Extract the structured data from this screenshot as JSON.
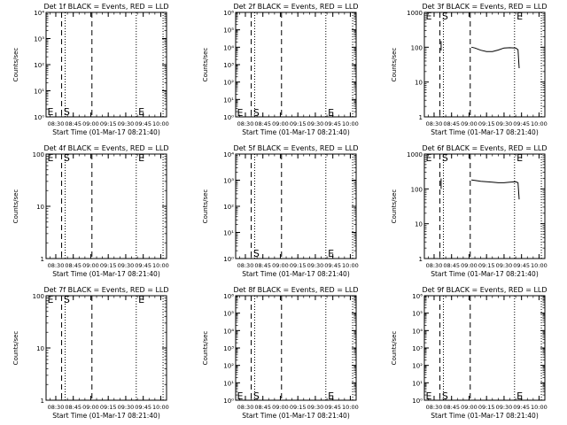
{
  "chart_data": [
    {
      "type": "line",
      "title": "Det 1f BLACK = Events, RED = LLD",
      "xlabel": "Start Time (01-Mar-17 08:21:40)",
      "ylabel": "Counts/sec",
      "yscale": "log",
      "ylim": [
        1.0,
        10000
      ],
      "yticks": [
        "10⁰",
        "10¹",
        "10²",
        "10³",
        "10⁴"
      ],
      "xticks": [
        "08:30",
        "08:45",
        "09:00",
        "09:15",
        "09:30",
        "09:45",
        "10:00"
      ],
      "xlim": [
        "08:21:40",
        "10:05"
      ],
      "dashed_lines": [
        "08:35",
        "09:01"
      ],
      "dotted_lines": [
        "08:38",
        "09:39",
        "10:02"
      ],
      "markers": [
        {
          "text": "E",
          "x": "08:22",
          "y": 1.6
        },
        {
          "text": "S",
          "x": "08:36",
          "y": 1.6
        },
        {
          "text": "E",
          "x": "09:40",
          "y": 1.6
        }
      ],
      "series": []
    },
    {
      "type": "line",
      "title": "Det 2f BLACK = Events, RED = LLD",
      "xlabel": "Start Time (01-Mar-17 08:21:40)",
      "ylabel": "Counts/sec",
      "yscale": "log",
      "ylim": [
        1.0,
        1000000
      ],
      "yticks": [
        "10⁰",
        "10¹",
        "10²",
        "10³",
        "10⁴",
        "10⁵",
        "10⁶"
      ],
      "xticks": [
        "08:30",
        "08:45",
        "09:00",
        "09:15",
        "09:30",
        "09:45",
        "10:00"
      ],
      "xlim": [
        "08:21:40",
        "10:05"
      ],
      "dashed_lines": [
        "08:35",
        "09:01"
      ],
      "dotted_lines": [
        "08:38",
        "09:39",
        "10:02"
      ],
      "markers": [
        {
          "text": "E",
          "x": "08:22",
          "y": 1.8
        },
        {
          "text": "S",
          "x": "08:36",
          "y": 1.8
        },
        {
          "text": "E",
          "x": "09:40",
          "y": 1.8
        }
      ],
      "series": []
    },
    {
      "type": "line",
      "title": "Det 3f BLACK = Events, RED = LLD",
      "xlabel": "Start Time (01-Mar-17 08:21:40)",
      "ylabel": "Counts/sec",
      "yscale": "log",
      "ylim": [
        1,
        1000
      ],
      "yticks": [
        "1",
        "10",
        "100",
        "1000"
      ],
      "xticks": [
        "08:30",
        "08:45",
        "09:00",
        "09:15",
        "09:30",
        "09:45",
        "10:00"
      ],
      "xlim": [
        "08:21:40",
        "10:05"
      ],
      "dashed_lines": [
        "08:35",
        "09:01"
      ],
      "dotted_lines": [
        "08:38",
        "09:39",
        "10:02"
      ],
      "markers": [
        {
          "text": "E",
          "x": "08:22",
          "y": 800
        },
        {
          "text": "S",
          "x": "08:36",
          "y": 800
        },
        {
          "text": "E",
          "x": "09:40",
          "y": 800
        }
      ],
      "series": [
        {
          "x": [
            "08:36:00",
            "08:36:00"
          ],
          "y": [
            80,
            150
          ]
        },
        {
          "x": [
            "09:02",
            "09:05",
            "09:10",
            "09:15",
            "09:20",
            "09:25",
            "09:30",
            "09:35",
            "09:40",
            "09:42",
            "09:43"
          ],
          "y": [
            100,
            95,
            82,
            75,
            75,
            83,
            95,
            97,
            95,
            85,
            25
          ]
        }
      ]
    },
    {
      "type": "line",
      "title": "Det 4f BLACK = Events, RED = LLD",
      "xlabel": "Start Time (01-Mar-17 08:21:40)",
      "ylabel": "Counts/sec",
      "yscale": "log",
      "ylim": [
        1,
        100
      ],
      "yticks": [
        "1",
        "10",
        "100"
      ],
      "xticks": [
        "08:30",
        "08:45",
        "09:00",
        "09:15",
        "09:30",
        "09:45",
        "10:00"
      ],
      "xlim": [
        "08:21:40",
        "10:05"
      ],
      "dashed_lines": [
        "08:35",
        "09:01"
      ],
      "dotted_lines": [
        "08:38",
        "09:39",
        "10:02"
      ],
      "markers": [
        {
          "text": "E",
          "x": "08:22",
          "y": 85
        },
        {
          "text": "S",
          "x": "08:36",
          "y": 85
        },
        {
          "text": "E",
          "x": "09:40",
          "y": 85
        }
      ],
      "series": []
    },
    {
      "type": "line",
      "title": "Det 5f BLACK = Events, RED = LLD",
      "xlabel": "Start Time (01-Mar-17 08:21:40)",
      "ylabel": "Counts/sec",
      "yscale": "log",
      "ylim": [
        1.0,
        10000
      ],
      "yticks": [
        "10⁰",
        "10¹",
        "10²",
        "10³",
        "10⁴"
      ],
      "xticks": [
        "08:30",
        "08:45",
        "09:00",
        "09:15",
        "09:30",
        "09:45",
        "10:00"
      ],
      "xlim": [
        "08:21:40",
        "10:05"
      ],
      "dashed_lines": [
        "08:35",
        "09:01"
      ],
      "dotted_lines": [
        "08:38",
        "09:39",
        "10:02"
      ],
      "markers": [
        {
          "text": "S",
          "x": "08:36",
          "y": 1.6
        },
        {
          "text": "E",
          "x": "09:40",
          "y": 1.6
        }
      ],
      "series": []
    },
    {
      "type": "line",
      "title": "Det 6f BLACK = Events, RED = LLD",
      "xlabel": "Start Time (01-Mar-17 08:21:40)",
      "ylabel": "Counts/sec",
      "yscale": "log",
      "ylim": [
        1,
        1000
      ],
      "yticks": [
        "1",
        "10",
        "100",
        "1000"
      ],
      "xticks": [
        "08:30",
        "08:45",
        "09:00",
        "09:15",
        "09:30",
        "09:45",
        "10:00"
      ],
      "xlim": [
        "08:21:40",
        "10:05"
      ],
      "dashed_lines": [
        "08:35",
        "09:01"
      ],
      "dotted_lines": [
        "08:38",
        "09:39",
        "10:02"
      ],
      "markers": [
        {
          "text": "E",
          "x": "08:22",
          "y": 800
        },
        {
          "text": "S",
          "x": "08:36",
          "y": 800
        },
        {
          "text": "E",
          "x": "09:40",
          "y": 800
        }
      ],
      "series": [
        {
          "x": [
            "08:36:00",
            "08:36:00"
          ],
          "y": [
            100,
            200
          ]
        },
        {
          "x": [
            "09:02",
            "09:05",
            "09:10",
            "09:15",
            "09:20",
            "09:25",
            "09:30",
            "09:35",
            "09:40",
            "09:42",
            "09:43"
          ],
          "y": [
            180,
            175,
            165,
            160,
            155,
            150,
            150,
            155,
            160,
            150,
            50
          ]
        }
      ]
    },
    {
      "type": "line",
      "title": "Det 7f BLACK = Events, RED = LLD",
      "xlabel": "Start Time (01-Mar-17 08:21:40)",
      "ylabel": "Counts/sec",
      "yscale": "log",
      "ylim": [
        1,
        100
      ],
      "yticks": [
        "1",
        "10",
        "100"
      ],
      "xticks": [
        "08:30",
        "08:45",
        "09:00",
        "09:15",
        "09:30",
        "09:45",
        "10:00"
      ],
      "xlim": [
        "08:21:40",
        "10:05"
      ],
      "dashed_lines": [
        "08:35",
        "09:01"
      ],
      "dotted_lines": [
        "08:38",
        "09:39",
        "10:02"
      ],
      "markers": [
        {
          "text": "E",
          "x": "08:22",
          "y": 85
        },
        {
          "text": "S",
          "x": "08:36",
          "y": 85
        },
        {
          "text": "E",
          "x": "09:40",
          "y": 85
        }
      ],
      "series": []
    },
    {
      "type": "line",
      "title": "Det 8f BLACK = Events, RED = LLD",
      "xlabel": "Start Time (01-Mar-17 08:21:40)",
      "ylabel": "Counts/sec",
      "yscale": "log",
      "ylim": [
        1.0,
        1000000
      ],
      "yticks": [
        "10⁰",
        "10¹",
        "10²",
        "10³",
        "10⁴",
        "10⁵",
        "10⁶"
      ],
      "xticks": [
        "08:30",
        "08:45",
        "09:00",
        "09:15",
        "09:30",
        "09:45",
        "10:00"
      ],
      "xlim": [
        "08:21:40",
        "10:05"
      ],
      "dashed_lines": [
        "08:35",
        "09:01"
      ],
      "dotted_lines": [
        "08:38",
        "09:39",
        "10:02"
      ],
      "markers": [
        {
          "text": "E",
          "x": "08:22",
          "y": 1.8
        },
        {
          "text": "S",
          "x": "08:36",
          "y": 1.8
        },
        {
          "text": "E",
          "x": "09:40",
          "y": 1.8
        }
      ],
      "series": []
    },
    {
      "type": "line",
      "title": "Det 9f BLACK = Events, RED = LLD",
      "xlabel": "Start Time (01-Mar-17 08:21:40)",
      "ylabel": "Counts/sec",
      "yscale": "log",
      "ylim": [
        1.0,
        1000000
      ],
      "yticks": [
        "10⁰",
        "10¹",
        "10²",
        "10³",
        "10⁴",
        "10⁵",
        "10⁶"
      ],
      "xticks": [
        "08:30",
        "08:45",
        "09:00",
        "09:15",
        "09:30",
        "09:45",
        "10:00"
      ],
      "xlim": [
        "08:21:40",
        "10:05"
      ],
      "dashed_lines": [
        "08:35",
        "09:01"
      ],
      "dotted_lines": [
        "08:38",
        "09:39",
        "10:02"
      ],
      "markers": [
        {
          "text": "E",
          "x": "08:22",
          "y": 1.8
        },
        {
          "text": "S",
          "x": "08:36",
          "y": 1.8
        },
        {
          "text": "E",
          "x": "09:40",
          "y": 1.8
        }
      ],
      "series": []
    }
  ]
}
